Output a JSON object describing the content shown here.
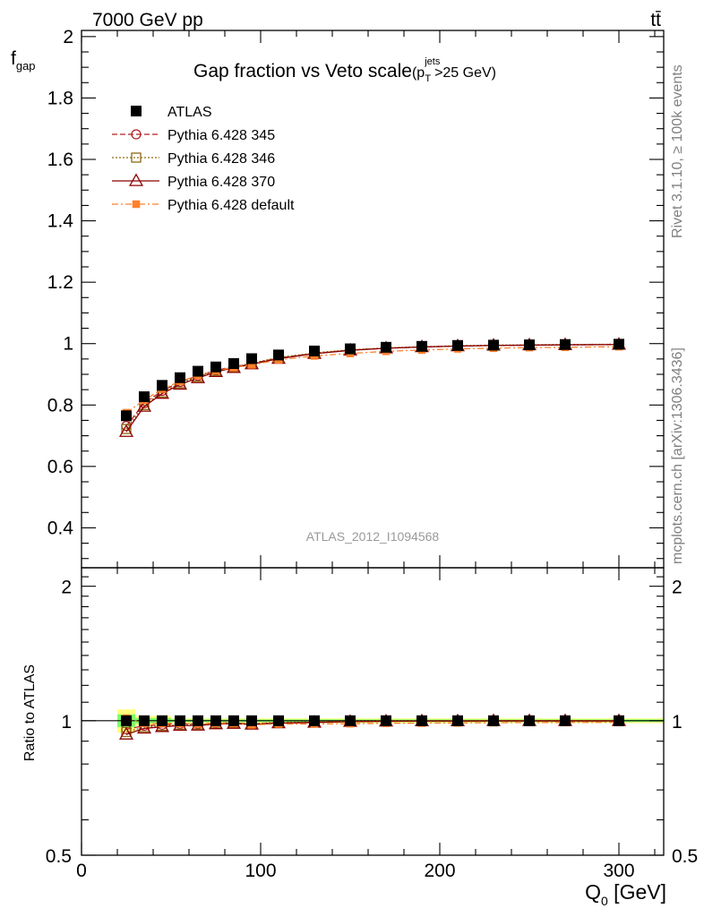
{
  "header": {
    "energy_label": "7000 GeV pp",
    "process_label": "tt̄"
  },
  "side_labels": {
    "rivet": "Rivet 3.1.10, ≥ 100k events",
    "mcplots": "mcplots.cern.ch [arXiv:1306.3436]"
  },
  "chart_data": {
    "type": "scatter",
    "title": "Gap fraction vs Veto scale",
    "title_cut": {
      "p": "(p",
      "sup": "jets",
      "sub": "T",
      "rest": ">25 GeV)"
    },
    "analysis_id": "ATLAS_2012_I1094568",
    "ylabel": {
      "base": "f",
      "sub": "gap"
    },
    "xlabel": {
      "base": "Q",
      "sub": "0",
      "unit": " [GeV]"
    },
    "ratio_ylabel": "Ratio to ATLAS",
    "xlim": [
      0,
      325
    ],
    "ylim": [
      0.27,
      2.02
    ],
    "ratio_ylim": [
      0.5,
      2.2
    ],
    "ratio_log": true,
    "x_ticks": [
      "0",
      "100",
      "200",
      "300"
    ],
    "y_ticks": [
      "0.4",
      "0.6",
      "0.8",
      "1",
      "1.2",
      "1.4",
      "1.6",
      "1.8",
      "2"
    ],
    "ratio_ticks": [
      "0.5",
      "1",
      "2"
    ],
    "legend_position": "top-left",
    "x": [
      25,
      35,
      45,
      55,
      65,
      75,
      85,
      95,
      110,
      130,
      150,
      170,
      190,
      210,
      230,
      250,
      270,
      300
    ],
    "series": [
      {
        "name": "ATLAS",
        "color": "#000000",
        "values": [
          0.765,
          0.827,
          0.864,
          0.889,
          0.91,
          0.924,
          0.935,
          0.951,
          0.963,
          0.976,
          0.983,
          0.988,
          0.991,
          0.994,
          0.995,
          0.996,
          0.997,
          0.998
        ]
      },
      {
        "name": "Pythia 6.428 345",
        "color": "#b22222",
        "values": [
          0.732,
          0.806,
          0.846,
          0.875,
          0.895,
          0.913,
          0.925,
          0.935,
          0.953,
          0.968,
          0.979,
          0.985,
          0.989,
          0.992,
          0.994,
          0.995,
          0.996,
          0.997
        ]
      },
      {
        "name": "Pythia 6.428 346",
        "color": "#8b6914",
        "values": [
          0.722,
          0.8,
          0.841,
          0.871,
          0.892,
          0.911,
          0.924,
          0.936,
          0.955,
          0.97,
          0.98,
          0.986,
          0.99,
          0.993,
          0.995,
          0.996,
          0.997,
          0.998
        ]
      },
      {
        "name": "Pythia 6.428 370",
        "color": "#8b0000",
        "values": [
          0.713,
          0.795,
          0.837,
          0.867,
          0.888,
          0.908,
          0.921,
          0.933,
          0.951,
          0.967,
          0.978,
          0.985,
          0.989,
          0.992,
          0.994,
          0.995,
          0.996,
          0.997
        ]
      },
      {
        "name": "Pythia 6.428 default",
        "color": "#ff7f2a",
        "values": [
          0.775,
          0.816,
          0.852,
          0.877,
          0.896,
          0.912,
          0.922,
          0.931,
          0.947,
          0.96,
          0.968,
          0.975,
          0.979,
          0.983,
          0.985,
          0.987,
          0.988,
          0.99
        ]
      }
    ]
  }
}
